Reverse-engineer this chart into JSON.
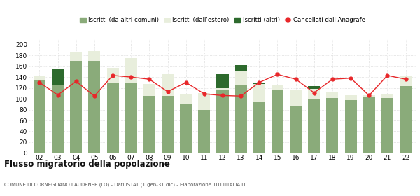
{
  "years": [
    "02",
    "03",
    "04",
    "05",
    "06",
    "07",
    "08",
    "09",
    "10",
    "11",
    "12",
    "13",
    "14",
    "15",
    "16",
    "17",
    "18",
    "19",
    "20",
    "21",
    "22"
  ],
  "iscritti_altri_comuni": [
    135,
    125,
    170,
    170,
    130,
    130,
    105,
    105,
    90,
    80,
    115,
    125,
    95,
    115,
    87,
    100,
    102,
    98,
    103,
    101,
    123
  ],
  "iscritti_estero": [
    8,
    0,
    15,
    18,
    27,
    45,
    22,
    40,
    18,
    30,
    5,
    25,
    32,
    10,
    28,
    18,
    10,
    8,
    3,
    7,
    18
  ],
  "iscritti_altri": [
    0,
    30,
    0,
    0,
    0,
    0,
    0,
    0,
    0,
    0,
    25,
    12,
    3,
    0,
    0,
    5,
    0,
    0,
    0,
    0,
    0
  ],
  "cancellati": [
    130,
    107,
    132,
    105,
    143,
    140,
    136,
    113,
    130,
    109,
    106,
    105,
    130,
    145,
    136,
    111,
    136,
    138,
    106,
    143,
    136
  ],
  "color_altri_comuni": "#8aab7a",
  "color_estero": "#e8eedc",
  "color_altri": "#2d6a2d",
  "color_cancellati": "#e8272a",
  "title": "Flusso migratorio della popolazione",
  "subtitle": "COMUNE DI CORNEGLIANO LAUDENSE (LO) - Dati ISTAT (1 gen-31 dic) - Elaborazione TUTTITALIA.IT",
  "legend_labels": [
    "Iscritti (da altri comuni)",
    "Iscritti (dall'estero)",
    "Iscritti (altri)",
    "Cancellati dall’Anagrafe"
  ],
  "ylim": [
    0,
    210
  ],
  "yticks": [
    0,
    20,
    40,
    60,
    80,
    100,
    120,
    140,
    160,
    180,
    200
  ],
  "background_color": "#ffffff",
  "grid_color": "#d0d0d0"
}
